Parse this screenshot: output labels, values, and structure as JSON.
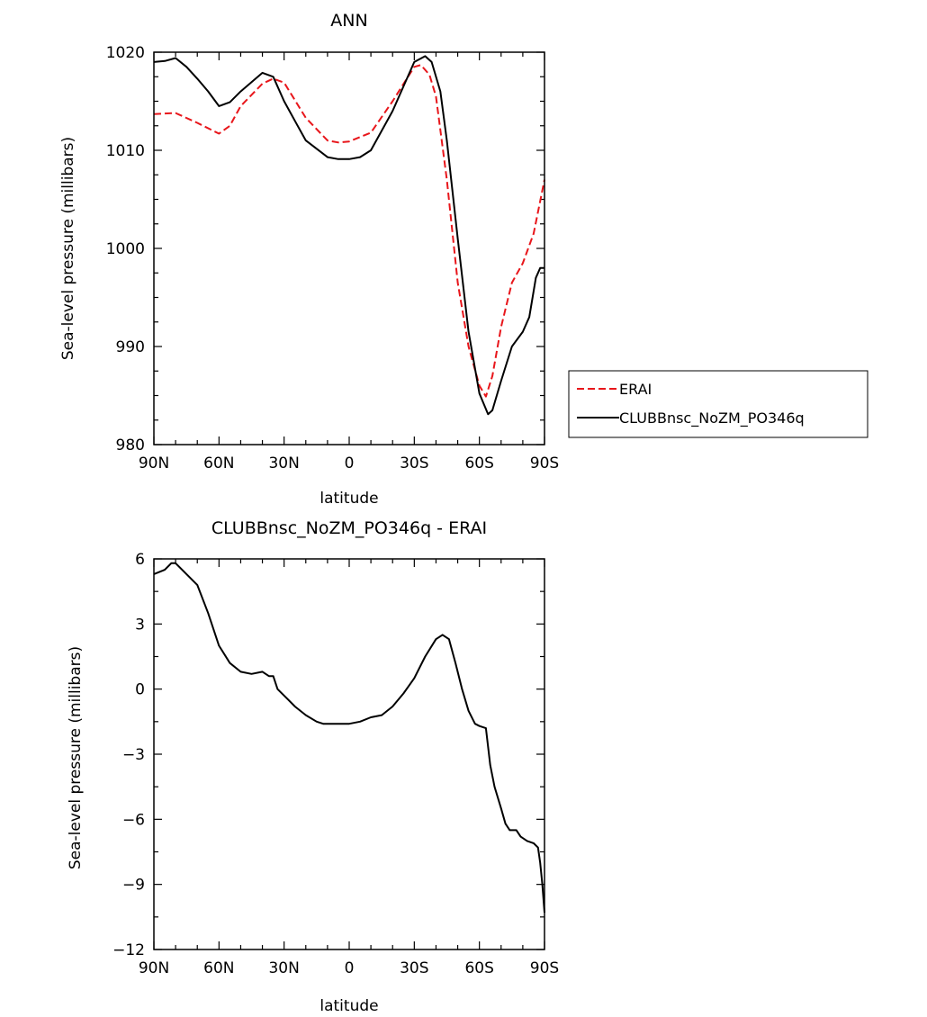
{
  "chart_data": [
    {
      "type": "line",
      "title": "ANN",
      "xlabel": "latitude",
      "ylabel": "Sea-level pressure (millibars)",
      "xlim": [
        90,
        -90
      ],
      "ylim": [
        980,
        1020
      ],
      "grid": false,
      "x_ticks": [
        "90N",
        "60N",
        "30N",
        "0",
        "30S",
        "60S",
        "90S"
      ],
      "y_ticks": [
        "1020",
        "1010",
        "1000",
        "990",
        "980"
      ],
      "legend": "right",
      "series": [
        {
          "name": "ERAI",
          "color": "#e8161b",
          "style": "dashed",
          "x": [
            90,
            80,
            70,
            60,
            55,
            50,
            40,
            35,
            30,
            20,
            10,
            5,
            0,
            -10,
            -20,
            -30,
            -33,
            -37,
            -40,
            -45,
            -50,
            -55,
            -60,
            -63,
            -66,
            -70,
            -75,
            -80,
            -85,
            -90
          ],
          "y": [
            1013.7,
            1013.8,
            1012.8,
            1011.7,
            1012.5,
            1014.5,
            1016.8,
            1017.3,
            1016.9,
            1013.3,
            1011.0,
            1010.8,
            1010.9,
            1011.8,
            1015.0,
            1018.5,
            1018.7,
            1017.7,
            1015.5,
            1007.0,
            996.5,
            990.0,
            986.0,
            984.9,
            987.0,
            992.0,
            996.5,
            998.5,
            1001.5,
            1007.0
          ]
        },
        {
          "name": "CLUBBnsc_NoZM_PO346q",
          "color": "#000000",
          "style": "solid",
          "x": [
            90,
            85,
            80,
            75,
            70,
            65,
            60,
            55,
            50,
            40,
            35,
            30,
            25,
            20,
            10,
            5,
            0,
            -5,
            -10,
            -20,
            -30,
            -35,
            -38,
            -42,
            -45,
            -50,
            -55,
            -60,
            -64,
            -66,
            -70,
            -75,
            -80,
            -83,
            -86,
            -88,
            -90
          ],
          "y": [
            1019.0,
            1019.1,
            1019.4,
            1018.5,
            1017.3,
            1016.0,
            1014.5,
            1014.9,
            1016.0,
            1017.9,
            1017.5,
            1015.0,
            1013.0,
            1011.0,
            1009.3,
            1009.1,
            1009.1,
            1009.3,
            1010.0,
            1014.0,
            1019.0,
            1019.6,
            1019.0,
            1016.0,
            1011.0,
            1001.0,
            991.5,
            985.2,
            983.1,
            983.5,
            986.5,
            990.0,
            991.5,
            993.0,
            997.0,
            998.0,
            998.0
          ]
        }
      ]
    },
    {
      "type": "line",
      "title": "CLUBBnsc_NoZM_PO346q - ERAI",
      "xlabel": "latitude",
      "ylabel": "Sea-level pressure (millibars)",
      "xlim": [
        90,
        -90
      ],
      "ylim": [
        -12,
        6
      ],
      "grid": false,
      "x_ticks": [
        "90N",
        "60N",
        "30N",
        "0",
        "30S",
        "60S",
        "90S"
      ],
      "y_ticks": [
        "6",
        "3",
        "0",
        "−3",
        "−6",
        "−9",
        "−12"
      ],
      "series": [
        {
          "color": "#000000",
          "style": "solid",
          "x": [
            90,
            85,
            82,
            80,
            75,
            70,
            65,
            60,
            55,
            50,
            45,
            40,
            37,
            35,
            33,
            30,
            28,
            25,
            20,
            15,
            12,
            10,
            5,
            0,
            -5,
            -10,
            -15,
            -20,
            -25,
            -30,
            -35,
            -40,
            -43,
            -46,
            -49,
            -52,
            -55,
            -58,
            -60,
            -63,
            -65,
            -67,
            -70,
            -72,
            -74,
            -77,
            -79,
            -82,
            -85,
            -87,
            -88,
            -89,
            -90
          ],
          "y": [
            5.3,
            5.5,
            5.8,
            5.8,
            5.3,
            4.8,
            3.5,
            2.0,
            1.2,
            0.8,
            0.7,
            0.8,
            0.6,
            0.6,
            0.0,
            -0.3,
            -0.5,
            -0.8,
            -1.2,
            -1.5,
            -1.6,
            -1.6,
            -1.6,
            -1.6,
            -1.5,
            -1.3,
            -1.2,
            -0.8,
            -0.2,
            0.5,
            1.5,
            2.3,
            2.5,
            2.3,
            1.2,
            0.0,
            -1.0,
            -1.6,
            -1.7,
            -1.8,
            -3.5,
            -4.5,
            -5.5,
            -6.2,
            -6.5,
            -6.5,
            -6.8,
            -7.0,
            -7.1,
            -7.3,
            -8.0,
            -9.0,
            -10.3
          ]
        }
      ]
    }
  ]
}
